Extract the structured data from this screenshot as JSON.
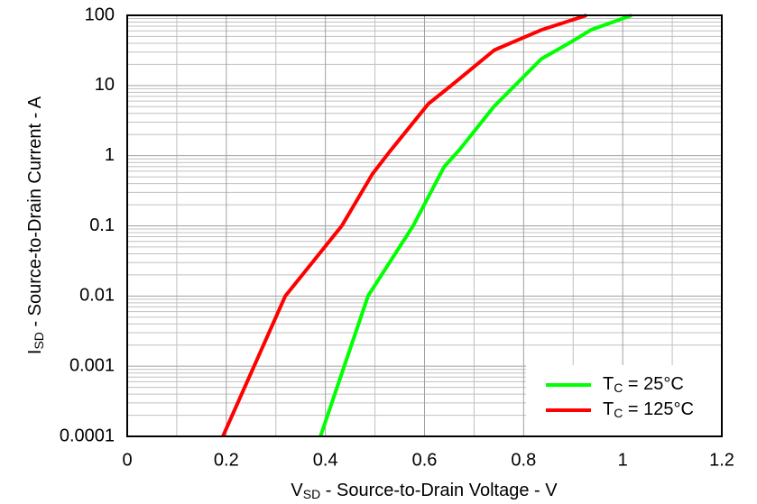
{
  "chart_data": {
    "type": "line",
    "xlabel": [
      "V",
      "SD",
      " - Source-to-Drain Voltage - V"
    ],
    "ylabel": [
      "I",
      "SD",
      " - Source-to-Drain Current - A"
    ],
    "xlim": [
      0,
      1.2
    ],
    "xticks": [
      0,
      0.2,
      0.4,
      0.6,
      0.8,
      1,
      1.2
    ],
    "ylim": [
      0.0001,
      100
    ],
    "yticks": [
      0.0001,
      0.001,
      0.01,
      0.1,
      1,
      10,
      100
    ],
    "ylog": true,
    "grid": true,
    "minor_grid": true,
    "legend": "lower right",
    "series": [
      {
        "name": [
          "T",
          "C",
          " = 25°C"
        ],
        "color": "#00ff00",
        "x": [
          0.39,
          0.486,
          0.577,
          0.64,
          0.67,
          0.74,
          0.836,
          0.894,
          0.936,
          1.018
        ],
        "values": [
          0.0001,
          0.01,
          0.1,
          0.7,
          1.2,
          5,
          24,
          41,
          62,
          100
        ]
      },
      {
        "name": [
          "T",
          "C",
          " = 125°C"
        ],
        "color": "#ff0000",
        "x": [
          0.193,
          0.319,
          0.433,
          0.495,
          0.53,
          0.608,
          0.654,
          0.741,
          0.836,
          0.927
        ],
        "values": [
          0.0001,
          0.01,
          0.1,
          0.55,
          1.15,
          5.5,
          10,
          32,
          62,
          100
        ]
      }
    ]
  }
}
